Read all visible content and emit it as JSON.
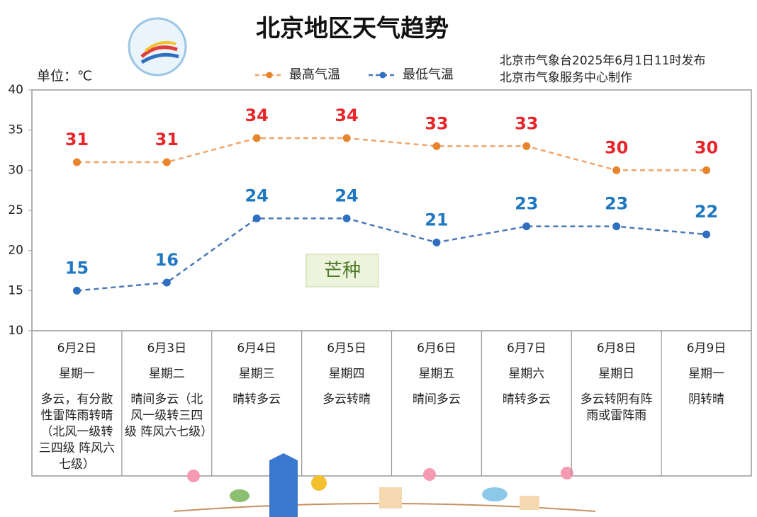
{
  "chart_data": {
    "type": "line",
    "title": "北京地区天气趋势",
    "unit_label": "单位：℃",
    "source": [
      "北京市气象台2025年6月1日11时发布",
      "北京市气象服务中心制作"
    ],
    "annotation": "芒种",
    "categories": [
      "6月2日",
      "6月3日",
      "6月4日",
      "6月5日",
      "6月6日",
      "6月7日",
      "6月8日",
      "6月9日"
    ],
    "weekdays": [
      "星期一",
      "星期二",
      "星期三",
      "星期四",
      "星期五",
      "星期六",
      "星期日",
      "星期一"
    ],
    "weather": [
      "多云，有分散性雷阵雨转晴（北风一级转三四级 阵风六七级）",
      "晴间多云（北风一级转三四级 阵风六七级）",
      "晴转多云",
      "多云转晴",
      "晴间多云",
      "晴转多云",
      "多云转阴有阵雨或雷阵雨",
      "阴转晴"
    ],
    "series": [
      {
        "name": "最高气温",
        "color": "#f0a468",
        "marker_color": "#e8842c",
        "label_color": "#e8262a",
        "values": [
          31,
          31,
          34,
          34,
          33,
          33,
          30,
          30
        ]
      },
      {
        "name": "最低气温",
        "color": "#4a78b8",
        "marker_color": "#2f6fc0",
        "label_color": "#1f78c1",
        "values": [
          15,
          16,
          24,
          24,
          21,
          23,
          23,
          22
        ]
      }
    ],
    "ylim": [
      10,
      40
    ],
    "yticks": [
      10,
      15,
      20,
      25,
      30,
      35,
      40
    ],
    "legend": "top"
  }
}
